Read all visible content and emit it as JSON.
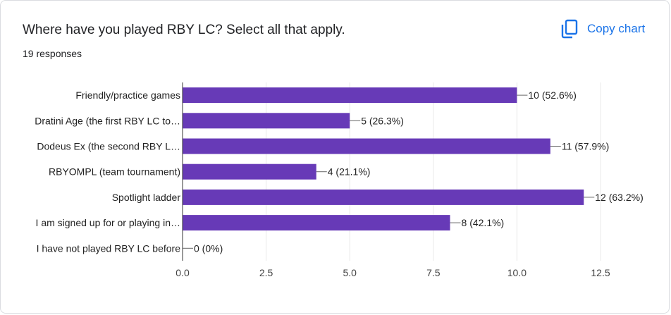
{
  "header": {
    "title": "Where have you played RBY LC? Select all that apply.",
    "responses": "19 responses",
    "copy_label": "Copy chart",
    "copy_icon": "copy-icon"
  },
  "colors": {
    "bar": "#673ab7",
    "accent": "#1a73e8"
  },
  "chart_data": {
    "type": "bar",
    "orientation": "horizontal",
    "categories": [
      "Friendly/practice games",
      "Dratini Age (the first RBY LC to…",
      "Dodeus Ex (the second RBY L…",
      "RBYOMPL (team tournament)",
      "Spotlight ladder",
      "I am signed up for or playing in…",
      "I have not played RBY LC before"
    ],
    "values": [
      10,
      5,
      11,
      4,
      12,
      8,
      0
    ],
    "data_labels": [
      "10 (52.6%)",
      "5 (26.3%)",
      "11 (57.9%)",
      "4 (21.1%)",
      "12 (63.2%)",
      "8 (42.1%)",
      "0 (0%)"
    ],
    "xlim": [
      0,
      12.5
    ],
    "xticks": [
      0,
      2.5,
      5,
      7.5,
      10,
      12.5
    ],
    "xtick_labels": [
      "0.0",
      "2.5",
      "5.0",
      "7.5",
      "10.0",
      "12.5"
    ],
    "grid": true
  }
}
